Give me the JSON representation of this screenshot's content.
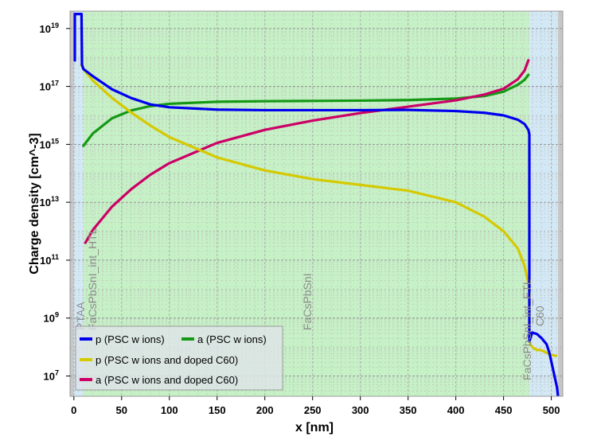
{
  "chart_data": {
    "type": "line",
    "title": "",
    "xlabel": "x [nm]",
    "ylabel": "Charge density [cm^-3]",
    "xlim": [
      -4,
      512
    ],
    "ylim_log10": [
      6.3,
      19.6
    ],
    "y_scale": "log",
    "x_ticks": [
      0,
      50,
      100,
      150,
      200,
      250,
      300,
      350,
      400,
      450,
      500
    ],
    "y_ticks": [
      {
        "base": "10",
        "exp": "19",
        "log": 19
      },
      {
        "base": "10",
        "exp": "17",
        "log": 17
      },
      {
        "base": "10",
        "exp": "15",
        "log": 15
      },
      {
        "base": "10",
        "exp": "13",
        "log": 13
      },
      {
        "base": "10",
        "exp": "11",
        "log": 11
      },
      {
        "base": "10",
        "exp": "9",
        "log": 9
      },
      {
        "base": "10",
        "exp": "7",
        "log": 7
      }
    ],
    "grid": true,
    "legend_position": "bottom-left",
    "regions": [
      {
        "label": "PTAA",
        "x0": 0,
        "x1": 8,
        "color": "#d3e8f5"
      },
      {
        "label": "FaCsPbSnI_int_HTL",
        "x0": 8,
        "x1": 10,
        "color": "#d3e8f5"
      },
      {
        "label": "FaCsPbSnI",
        "x0": 10,
        "x1": 477,
        "color": "#c6f0c6"
      },
      {
        "label": "FaCsPbSnI_int_ETL",
        "x0": 477,
        "x1": 479,
        "color": "#d3e8f5"
      },
      {
        "label": "C60",
        "x0": 479,
        "x1": 507,
        "color": "#d3e8f5"
      }
    ],
    "series": [
      {
        "name": "p (PSC w ions)",
        "color": "#0000ee",
        "x": [
          1,
          1,
          8,
          8.5,
          10,
          20,
          40,
          60,
          80,
          100,
          150,
          200,
          250,
          300,
          350,
          400,
          430,
          450,
          465,
          472,
          476,
          477,
          477,
          478,
          480,
          485,
          490,
          495,
          498,
          500,
          502,
          504,
          506,
          507
        ],
        "y": [
          17.9,
          19.5,
          19.5,
          17.75,
          17.6,
          17.35,
          16.9,
          16.6,
          16.38,
          16.28,
          16.2,
          16.18,
          16.18,
          16.18,
          16.19,
          16.15,
          16.09,
          16.0,
          15.85,
          15.7,
          15.5,
          15.35,
          8.2,
          8.3,
          8.5,
          8.45,
          8.3,
          8.1,
          7.8,
          7.5,
          7.2,
          6.9,
          6.6,
          6.3
        ]
      },
      {
        "name": "a (PSC w ions)",
        "color": "#159915",
        "x": [
          10,
          20,
          40,
          60,
          80,
          100,
          150,
          200,
          250,
          300,
          350,
          400,
          430,
          450,
          465,
          472,
          476
        ],
        "y": [
          14.95,
          15.38,
          15.9,
          16.17,
          16.32,
          16.4,
          16.47,
          16.49,
          16.5,
          16.51,
          16.53,
          16.58,
          16.67,
          16.82,
          17.06,
          17.23,
          17.4
        ]
      },
      {
        "name": "p (PSC w ions and doped C60)",
        "color": "#d5c900",
        "x": [
          8,
          10,
          20,
          40,
          60,
          80,
          100,
          150,
          200,
          250,
          300,
          350,
          400,
          430,
          450,
          465,
          472,
          476,
          477,
          477,
          478,
          480,
          482,
          485,
          488,
          490,
          492,
          494,
          496,
          498,
          500,
          502,
          504,
          505
        ],
        "y": [
          17.75,
          17.6,
          17.2,
          16.6,
          16.1,
          15.65,
          15.25,
          14.55,
          14.1,
          13.8,
          13.6,
          13.4,
          13.0,
          12.5,
          12.0,
          11.4,
          10.8,
          10.2,
          9.9,
          8.3,
          8.1,
          8.0,
          7.95,
          7.9,
          7.9,
          7.88,
          7.85,
          7.82,
          7.78,
          7.75,
          7.72,
          7.72,
          7.7,
          7.7
        ]
      },
      {
        "name": "a (PSC w ions and doped C60)",
        "color": "#cc0066",
        "x": [
          12,
          20,
          40,
          60,
          80,
          100,
          150,
          200,
          250,
          300,
          350,
          400,
          430,
          450,
          465,
          472,
          476
        ],
        "y": [
          11.6,
          12.05,
          12.85,
          13.45,
          13.95,
          14.35,
          15.05,
          15.5,
          15.82,
          16.08,
          16.3,
          16.52,
          16.72,
          16.92,
          17.25,
          17.55,
          17.9
        ]
      }
    ]
  }
}
